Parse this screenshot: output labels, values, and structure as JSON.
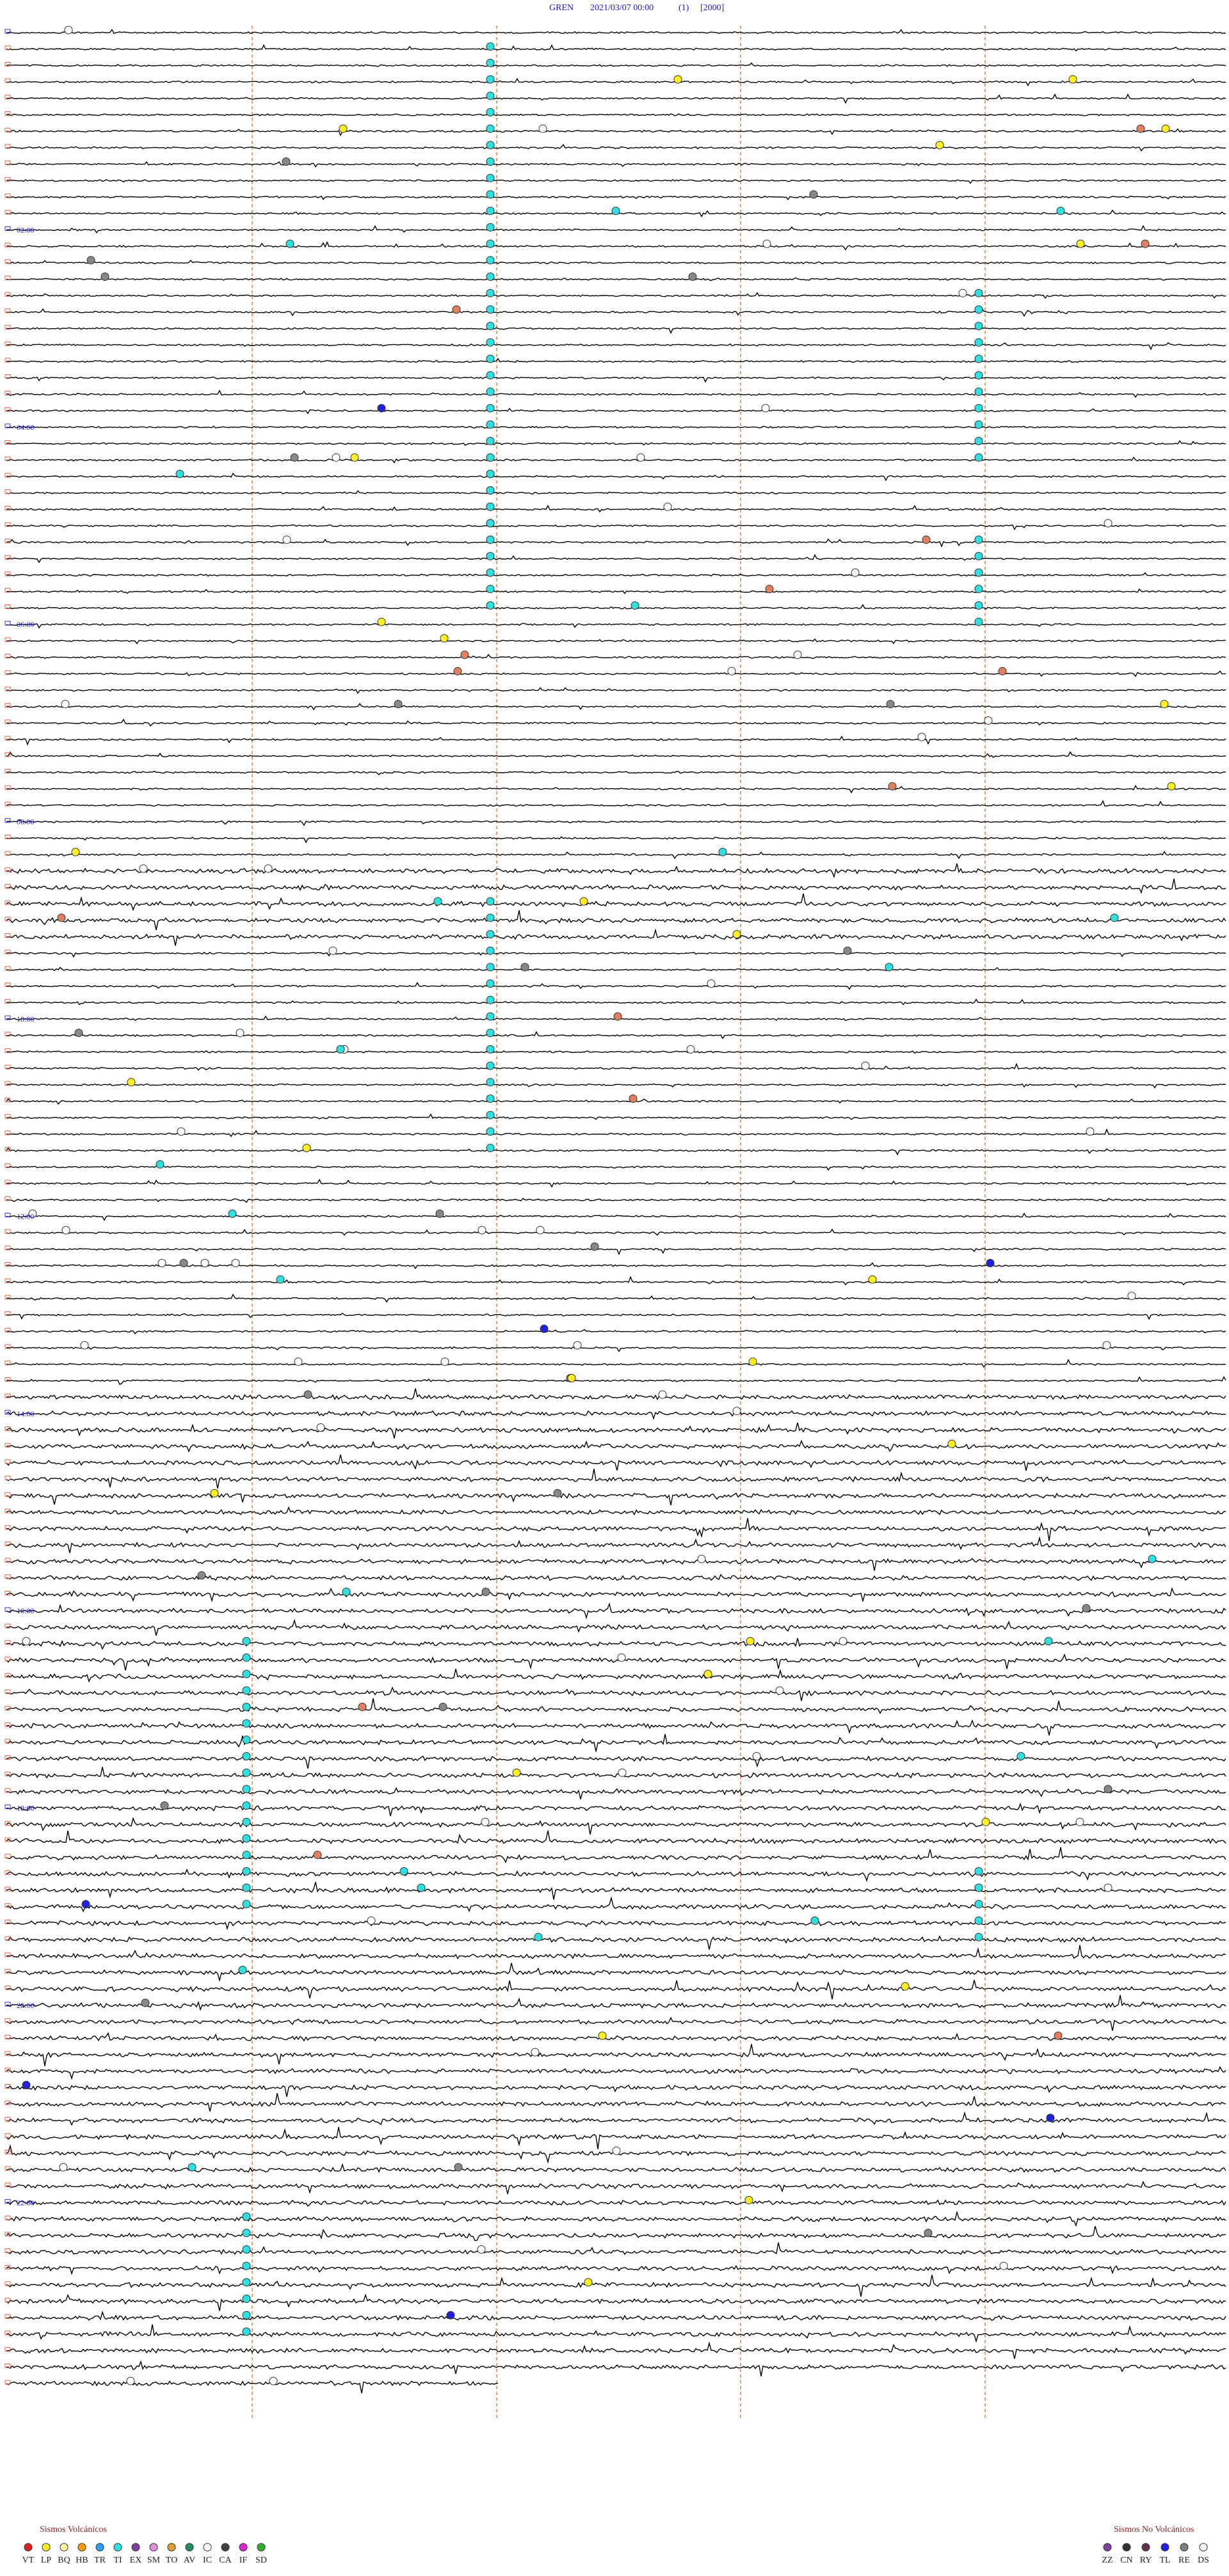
{
  "header": {
    "station": "GREN",
    "datetime": "2021/03/07 00:00",
    "scale": "(1)",
    "gain": "[2000]"
  },
  "time_labels": [
    "02:00",
    "04:00",
    "06:00",
    "08:00",
    "10:00",
    "12:00",
    "14:00",
    "16:00",
    "18:00",
    "20:00",
    "22:00"
  ],
  "legend": {
    "volcanic": {
      "title": "Sismos Volcánicos",
      "items": [
        "VT",
        "LP",
        "BQ",
        "HB",
        "TR",
        "TI",
        "EX",
        "SM",
        "TO",
        "AV",
        "IC",
        "CA",
        "IF",
        "SD"
      ]
    },
    "non_volcanic": {
      "title": "Sismos No Volcánicos",
      "items": [
        "ZZ",
        "CN",
        "RY",
        "TL",
        "RE",
        "DS"
      ]
    }
  }
}
